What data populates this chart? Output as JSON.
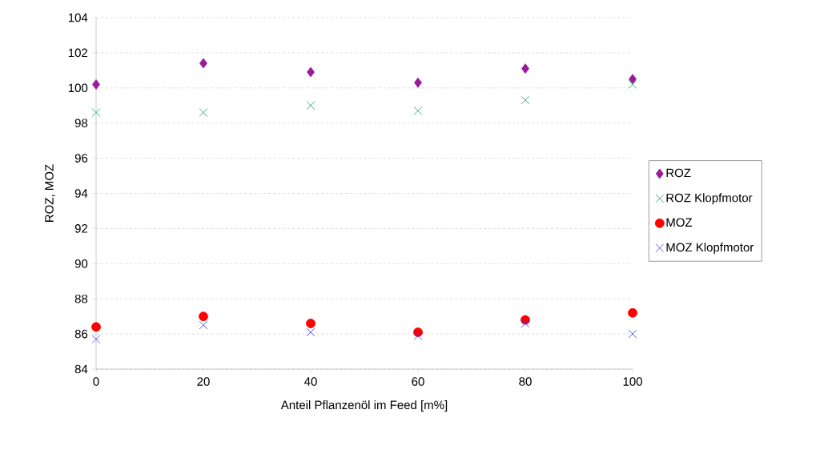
{
  "chart_data": {
    "type": "scatter",
    "xlabel": "Anteil  Pflanzenöl im Feed [m%]",
    "ylabel": "ROZ, MOZ",
    "x": [
      0,
      20,
      40,
      60,
      80,
      100
    ],
    "series": [
      {
        "name": "ROZ",
        "color": "#9b1a9b",
        "marker": "diamond",
        "values": [
          100.2,
          101.4,
          100.9,
          100.3,
          101.1,
          100.5
        ]
      },
      {
        "name": "ROZ Klopfmotor",
        "color": "#00a050",
        "marker": "cross",
        "values": [
          98.6,
          98.6,
          99.0,
          98.7,
          99.3,
          100.2
        ]
      },
      {
        "name": "MOZ",
        "color": "#ff0000",
        "marker": "circle",
        "values": [
          86.4,
          87.0,
          86.6,
          86.1,
          86.8,
          87.2
        ]
      },
      {
        "name": "MOZ Klopfmotor",
        "color": "#3333ee",
        "marker": "cross",
        "values": [
          85.7,
          86.5,
          86.1,
          85.9,
          86.6,
          86.0
        ]
      }
    ],
    "xlim": [
      0,
      100
    ],
    "xticks": [
      0,
      20,
      40,
      60,
      80,
      100
    ],
    "ylim": [
      84,
      104
    ],
    "yticks": [
      84,
      86,
      88,
      90,
      92,
      94,
      96,
      98,
      100,
      102,
      104
    ],
    "grid": "y",
    "legend": "right"
  }
}
